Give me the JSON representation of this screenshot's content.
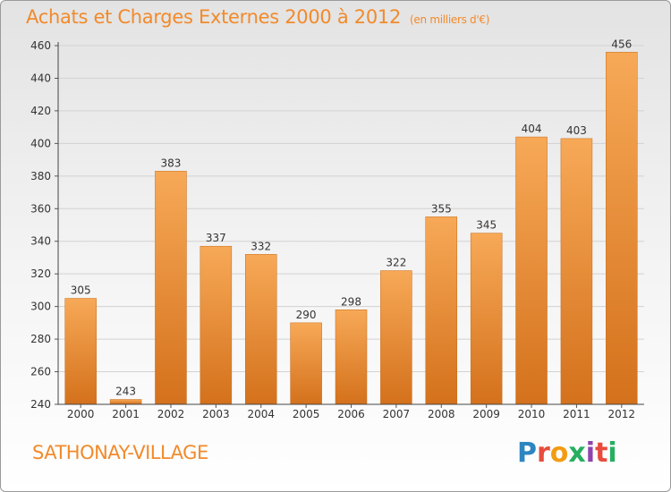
{
  "title": "Achats et Charges Externes 2000 à 2012",
  "unit": "(en milliers d'€)",
  "commune": "SATHONAY-VILLAGE",
  "logo": [
    "P",
    "r",
    "o",
    "x",
    "i",
    "t",
    "i"
  ],
  "colors": {
    "bar_light": "#f6a552",
    "bar_dark": "#d6741f",
    "title": "#f28a2b",
    "grid": "#d2d2d2"
  },
  "chart_data": {
    "type": "bar",
    "title": "Achats et Charges Externes 2000 à 2012",
    "subtitle": "(en milliers d'€)",
    "xlabel": "",
    "ylabel": "",
    "categories": [
      "2000",
      "2001",
      "2002",
      "2003",
      "2004",
      "2005",
      "2006",
      "2007",
      "2008",
      "2009",
      "2010",
      "2011",
      "2012"
    ],
    "values": [
      305,
      243,
      383,
      337,
      332,
      290,
      298,
      322,
      355,
      345,
      404,
      403,
      456
    ],
    "ylim": [
      240,
      460
    ],
    "yticks": [
      240,
      260,
      280,
      300,
      320,
      340,
      360,
      380,
      400,
      420,
      440,
      460
    ],
    "grid": true,
    "data_labels": true
  }
}
